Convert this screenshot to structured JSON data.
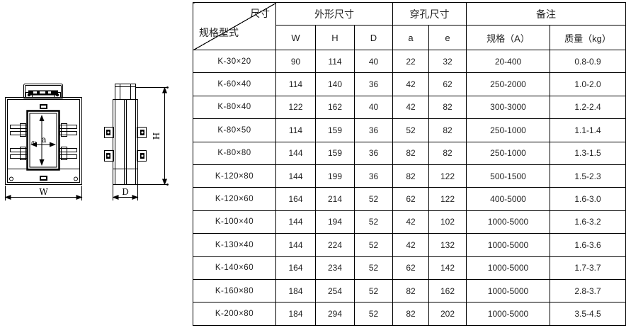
{
  "colors": {
    "line": "#000000",
    "text": "#1f1f1f",
    "background": "#ffffff"
  },
  "drawing": {
    "labels": {
      "width": "W",
      "height": "H",
      "depth": "D",
      "hole_a": "a",
      "hole_e": "e"
    }
  },
  "table": {
    "corner_top": "尺寸",
    "corner_bottom": "规格型式",
    "groups": [
      {
        "label": "外形尺寸",
        "span": 3
      },
      {
        "label": "穿孔尺寸",
        "span": 2
      },
      {
        "label": "备注",
        "span": 2
      }
    ],
    "sub_headers": [
      "W",
      "H",
      "D",
      "a",
      "e",
      "规格（A）",
      "质量（kg）"
    ],
    "rows": [
      {
        "model": "K-30×20",
        "values": [
          "90",
          "114",
          "40",
          "22",
          "32",
          "20-400",
          "0.8-0.9"
        ]
      },
      {
        "model": "K-60×40",
        "values": [
          "114",
          "140",
          "36",
          "42",
          "62",
          "250-2000",
          "1.0-2.0"
        ]
      },
      {
        "model": "K-80×40",
        "values": [
          "122",
          "162",
          "40",
          "42",
          "82",
          "300-3000",
          "1.2-2.4"
        ]
      },
      {
        "model": "K-80×50",
        "values": [
          "114",
          "159",
          "36",
          "52",
          "82",
          "250-1000",
          "1.1-1.4"
        ]
      },
      {
        "model": "K-80×80",
        "values": [
          "144",
          "159",
          "36",
          "82",
          "82",
          "250-1000",
          "1.3-1.5"
        ]
      },
      {
        "model": "K-120×80",
        "values": [
          "144",
          "199",
          "36",
          "82",
          "122",
          "500-1500",
          "1.5-2.3"
        ]
      },
      {
        "model": "K-120×60",
        "values": [
          "164",
          "214",
          "52",
          "62",
          "122",
          "400-5000",
          "1.6-3.0"
        ]
      },
      {
        "model": "K-100×40",
        "values": [
          "144",
          "194",
          "52",
          "42",
          "102",
          "1000-5000",
          "1.6-3.2"
        ]
      },
      {
        "model": "K-130×40",
        "values": [
          "144",
          "224",
          "52",
          "42",
          "132",
          "1000-5000",
          "1.6-3.6"
        ]
      },
      {
        "model": "K-140×60",
        "values": [
          "164",
          "234",
          "52",
          "62",
          "142",
          "1000-5000",
          "1.7-3.7"
        ]
      },
      {
        "model": "K-160×80",
        "values": [
          "184",
          "254",
          "52",
          "82",
          "162",
          "1000-5000",
          "2.8-3.7"
        ]
      },
      {
        "model": "K-200×80",
        "values": [
          "184",
          "294",
          "52",
          "82",
          "202",
          "1000-5000",
          "3.5-4.5"
        ]
      }
    ]
  }
}
